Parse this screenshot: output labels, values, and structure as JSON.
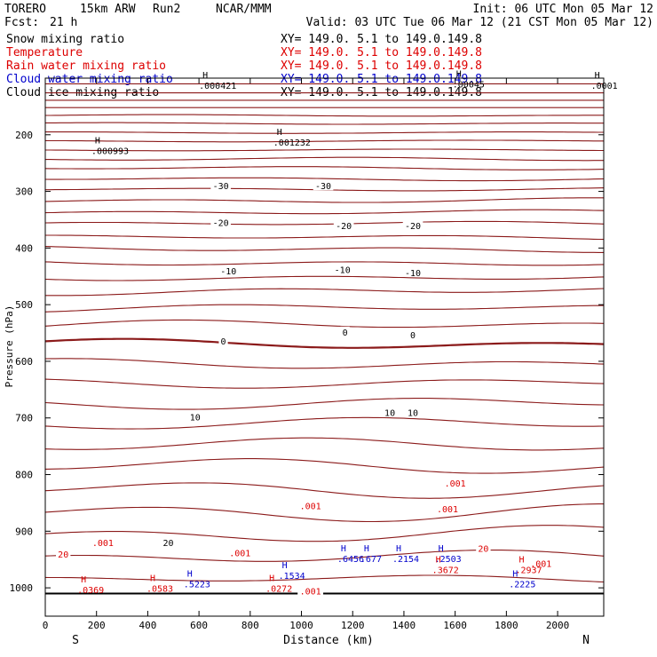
{
  "header": {
    "model": "TORERO",
    "resolution": "15km ARW",
    "run": "Run2",
    "org": "NCAR/MMM",
    "init": "Init: 06 UTC Mon 05 Mar 12",
    "fcst_label": "Fcst:",
    "fcst_value": "21 h",
    "valid": "Valid: 03 UTC Tue 06 Mar 12 (21 CST Mon 05 Mar 12)"
  },
  "legend": [
    {
      "name": "Snow mixing ratio",
      "xy": "XY= 149.0.  5.1 to 149.0.149.8",
      "color": "#000000"
    },
    {
      "name": "Temperature",
      "xy": "XY= 149.0.  5.1 to 149.0.149.8",
      "color": "#dd0000"
    },
    {
      "name": "Rain water mixing ratio",
      "xy": "XY= 149.0.  5.1 to 149.0.149.8",
      "color": "#dd0000"
    },
    {
      "name": "Cloud water mixing ratio",
      "xy": "XY= 149.0.  5.1 to 149.0.149.8",
      "color": "#0000cc"
    },
    {
      "name": "Cloud ice mixing ratio",
      "xy": "XY= 149.0.  5.1 to 149.0.149.8",
      "color": "#000000"
    }
  ],
  "chart_data": {
    "type": "line",
    "xlabel": "Distance (km)",
    "ylabel": "Pressure (hPa)",
    "xlim": [
      0,
      2180
    ],
    "ylim": [
      1050,
      100
    ],
    "x_ticks": [
      "0",
      "200",
      "400",
      "600",
      "800",
      "1000",
      "1200",
      "1400",
      "1600",
      "1800",
      "2000"
    ],
    "x_tick_values": [
      0,
      200,
      400,
      600,
      800,
      1000,
      1200,
      1400,
      1600,
      1800,
      2000
    ],
    "y_ticks": [
      "200",
      "300",
      "400",
      "500",
      "600",
      "700",
      "800",
      "900",
      "1000"
    ],
    "y_tick_values": [
      200,
      300,
      400,
      500,
      600,
      700,
      800,
      900,
      1000
    ],
    "end_labels": {
      "left": "S",
      "right": "N"
    },
    "surface_pressure": 1010,
    "temperature_isotherms": [
      {
        "base": 110,
        "amp": 0
      },
      {
        "base": 126,
        "amp": 0
      },
      {
        "base": 139,
        "amp": 0
      },
      {
        "base": 152,
        "amp": 0
      },
      {
        "base": 166,
        "amp": 1
      },
      {
        "base": 180,
        "amp": 1
      },
      {
        "base": 196,
        "amp": 1
      },
      {
        "base": 211,
        "amp": 1
      },
      {
        "base": 227,
        "amp": 1
      },
      {
        "base": 243,
        "amp": 2
      },
      {
        "base": 259,
        "amp": 2
      },
      {
        "base": 278,
        "amp": 2
      },
      {
        "base": 296,
        "amp": 2
      },
      {
        "base": 316,
        "amp": 3
      },
      {
        "base": 337,
        "amp": 3
      },
      {
        "base": 357,
        "amp": 3
      },
      {
        "base": 381,
        "amp": 3
      },
      {
        "base": 402,
        "amp": 4
      },
      {
        "base": 426,
        "amp": 4
      },
      {
        "base": 452,
        "amp": 4
      },
      {
        "base": 476,
        "amp": 5
      },
      {
        "base": 506,
        "amp": 5
      },
      {
        "base": 536,
        "amp": 6
      },
      {
        "base": 570,
        "amp": 6,
        "bold": true
      },
      {
        "base": 604,
        "amp": 6
      },
      {
        "base": 638,
        "amp": 6
      },
      {
        "base": 674,
        "amp": 7
      },
      {
        "base": 710,
        "amp": 7
      },
      {
        "base": 748,
        "amp": 8
      },
      {
        "base": 785,
        "amp": 9
      },
      {
        "base": 826,
        "amp": 10
      },
      {
        "base": 866,
        "amp": 11
      },
      {
        "base": 905,
        "amp": 10
      },
      {
        "base": 946,
        "amp": 8
      },
      {
        "base": 985,
        "amp": 5
      }
    ],
    "contour_labels": [
      {
        "x": 685,
        "p": 290,
        "text": "-30",
        "color": "#000000"
      },
      {
        "x": 1085,
        "p": 290,
        "text": "-30",
        "color": "#000000"
      },
      {
        "x": 685,
        "p": 355,
        "text": "-20",
        "color": "#000000"
      },
      {
        "x": 1165,
        "p": 360,
        "text": "-20",
        "color": "#000000"
      },
      {
        "x": 1435,
        "p": 360,
        "text": "-20",
        "color": "#000000"
      },
      {
        "x": 715,
        "p": 440,
        "text": "-10",
        "color": "#000000"
      },
      {
        "x": 1160,
        "p": 438,
        "text": "-10",
        "color": "#000000"
      },
      {
        "x": 1435,
        "p": 443,
        "text": "-10",
        "color": "#000000"
      },
      {
        "x": 695,
        "p": 564,
        "text": "0",
        "color": "#000000"
      },
      {
        "x": 1170,
        "p": 548,
        "text": "0",
        "color": "#000000"
      },
      {
        "x": 1435,
        "p": 553,
        "text": "0",
        "color": "#000000"
      },
      {
        "x": 585,
        "p": 698,
        "text": "10",
        "color": "#000000"
      },
      {
        "x": 1345,
        "p": 690,
        "text": "10",
        "color": "#000000"
      },
      {
        "x": 1435,
        "p": 690,
        "text": "10",
        "color": "#000000"
      },
      {
        "x": 480,
        "p": 920,
        "text": "20",
        "color": "#000000"
      },
      {
        "x": 1710,
        "p": 930,
        "text": "20",
        "color": "#dd0000"
      },
      {
        "x": 70,
        "p": 940,
        "text": "20",
        "color": "#dd0000"
      },
      {
        "x": 225,
        "p": 920,
        "text": ".001",
        "color": "#dd0000"
      },
      {
        "x": 760,
        "p": 938,
        "text": ".001",
        "color": "#dd0000"
      },
      {
        "x": 1035,
        "p": 855,
        "text": ".001",
        "color": "#dd0000"
      },
      {
        "x": 1570,
        "p": 860,
        "text": ".001",
        "color": "#dd0000"
      },
      {
        "x": 1600,
        "p": 815,
        "text": ".001",
        "color": "#dd0000"
      },
      {
        "x": 1935,
        "p": 957,
        "text": ".001",
        "color": "#dd0000"
      },
      {
        "x": 1035,
        "p": 1005,
        "text": ".001",
        "color": "#dd0000"
      }
    ],
    "maxima": [
      {
        "x": 600,
        "p": 105,
        "text": ".000421",
        "color": "#000000"
      },
      {
        "x": 1590,
        "p": 102,
        "text": ".00045",
        "color": "#000000"
      },
      {
        "x": 2130,
        "p": 105,
        "text": ".0001",
        "color": "#000000"
      },
      {
        "x": 180,
        "p": 220,
        "text": ".000993",
        "color": "#000000"
      },
      {
        "x": 890,
        "p": 205,
        "text": ".001232",
        "color": "#000000"
      },
      {
        "x": 540,
        "p": 985,
        "text": ".5223",
        "color": "#0000cc"
      },
      {
        "x": 910,
        "p": 970,
        "text": ".1534",
        "color": "#0000cc"
      },
      {
        "x": 1140,
        "p": 940,
        "text": ".6456",
        "color": "#0000cc"
      },
      {
        "x": 1230,
        "p": 940,
        "text": ".677",
        "color": "#0000cc"
      },
      {
        "x": 1355,
        "p": 940,
        "text": ".2154",
        "color": "#0000cc"
      },
      {
        "x": 1520,
        "p": 940,
        "text": ".2503",
        "color": "#0000cc"
      },
      {
        "x": 1810,
        "p": 985,
        "text": ".2225",
        "color": "#0000cc"
      },
      {
        "x": 125,
        "p": 995,
        "text": ".0369",
        "color": "#dd0000"
      },
      {
        "x": 395,
        "p": 993,
        "text": ".0583",
        "color": "#dd0000"
      },
      {
        "x": 860,
        "p": 993,
        "text": ".0272",
        "color": "#dd0000"
      },
      {
        "x": 1510,
        "p": 960,
        "text": ".3672",
        "color": "#dd0000"
      },
      {
        "x": 1835,
        "p": 960,
        "text": ".2937",
        "color": "#dd0000"
      }
    ]
  }
}
